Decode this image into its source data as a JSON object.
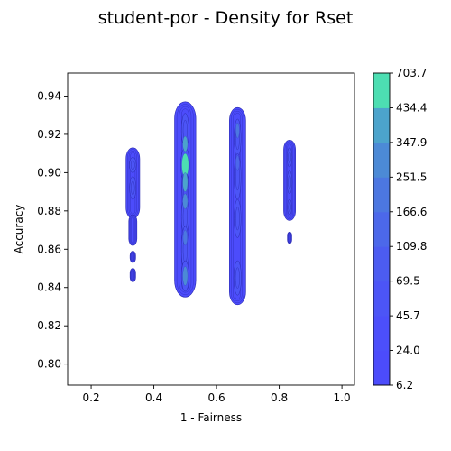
{
  "chart_data": {
    "type": "contour",
    "title": "student-por - Density for Rset",
    "xlabel": "1 - Fairness",
    "ylabel": "Accuracy",
    "xlim": [
      0.125,
      1.04
    ],
    "ylim": [
      0.789,
      0.952
    ],
    "xticks": [
      0.2,
      0.4,
      0.6,
      0.8,
      1.0
    ],
    "xtick_labels": [
      "0.2",
      "0.4",
      "0.6",
      "0.8",
      "1.0"
    ],
    "yticks": [
      0.8,
      0.82,
      0.84,
      0.86,
      0.88,
      0.9,
      0.92,
      0.94
    ],
    "ytick_labels": [
      "0.80",
      "0.82",
      "0.84",
      "0.86",
      "0.88",
      "0.90",
      "0.92",
      "0.94"
    ],
    "grid": false,
    "colorbar": {
      "levels": [
        6.2,
        24.0,
        45.7,
        69.5,
        109.8,
        166.6,
        251.5,
        347.9,
        434.4,
        703.7
      ],
      "labels": [
        "6.2",
        "24.0",
        "45.7",
        "69.5",
        "109.8",
        "166.6",
        "251.5",
        "347.9",
        "434.4",
        "703.7"
      ],
      "colors": [
        "#4c4cfb",
        "#4c4ffa",
        "#4c55f6",
        "#4c5cf1",
        "#4c68ea",
        "#4c77e1",
        "#4c8ad6",
        "#4ca4cc",
        "#4ddeb2"
      ]
    },
    "series": [
      {
        "x": 0.333,
        "blobs": [
          {
            "y_min": 0.876,
            "y_max": 0.913,
            "half_width": 0.022
          },
          {
            "y_min": 0.862,
            "y_max": 0.878,
            "half_width": 0.013
          },
          {
            "y_min": 0.853,
            "y_max": 0.859,
            "half_width": 0.009
          },
          {
            "y_min": 0.843,
            "y_max": 0.85,
            "half_width": 0.009
          }
        ],
        "core": [
          {
            "y": 0.904,
            "half_width": 0.011,
            "half_height": 0.004
          },
          {
            "y": 0.892,
            "half_width": 0.01,
            "half_height": 0.006
          }
        ]
      },
      {
        "x": 0.5,
        "blobs": [
          {
            "y_min": 0.835,
            "y_max": 0.937,
            "half_width": 0.034
          }
        ],
        "core": [
          {
            "y": 0.904,
            "half_width": 0.014,
            "half_height": 0.009
          },
          {
            "y": 0.892,
            "half_width": 0.01,
            "half_height": 0.01
          },
          {
            "y": 0.877,
            "half_width": 0.012,
            "half_height": 0.01
          },
          {
            "y": 0.86,
            "half_width": 0.012,
            "half_height": 0.012
          },
          {
            "y": 0.846,
            "half_width": 0.012,
            "half_height": 0.008
          },
          {
            "y": 0.922,
            "half_width": 0.012,
            "half_height": 0.009
          }
        ],
        "peaks": [
          {
            "y": 0.904,
            "half_width": 0.011,
            "half_height": 0.006,
            "color": "#4ddeb2"
          },
          {
            "y": 0.915,
            "half_width": 0.008,
            "half_height": 0.004,
            "color": "#4ca4cc"
          },
          {
            "y": 0.895,
            "half_width": 0.008,
            "half_height": 0.005,
            "color": "#4ca4cc"
          },
          {
            "y": 0.885,
            "half_width": 0.008,
            "half_height": 0.004,
            "color": "#4c8ad6"
          },
          {
            "y": 0.846,
            "half_width": 0.008,
            "half_height": 0.005,
            "color": "#4c8ad6"
          },
          {
            "y": 0.866,
            "half_width": 0.007,
            "half_height": 0.004,
            "color": "#4c77e1"
          }
        ]
      },
      {
        "x": 0.667,
        "blobs": [
          {
            "y_min": 0.831,
            "y_max": 0.934,
            "half_width": 0.026
          }
        ],
        "core": [
          {
            "y": 0.918,
            "half_width": 0.011,
            "half_height": 0.01
          },
          {
            "y": 0.898,
            "half_width": 0.011,
            "half_height": 0.012
          },
          {
            "y": 0.876,
            "half_width": 0.011,
            "half_height": 0.01
          },
          {
            "y": 0.845,
            "half_width": 0.012,
            "half_height": 0.009
          }
        ],
        "peaks": [
          {
            "y": 0.922,
            "half_width": 0.006,
            "half_height": 0.004,
            "color": "#4c77e1"
          },
          {
            "y": 0.905,
            "half_width": 0.006,
            "half_height": 0.004,
            "color": "#4c68ea"
          }
        ]
      },
      {
        "x": 0.833,
        "blobs": [
          {
            "y_min": 0.875,
            "y_max": 0.917,
            "half_width": 0.019
          },
          {
            "y_min": 0.863,
            "y_max": 0.869,
            "half_width": 0.007
          }
        ],
        "core": [
          {
            "y": 0.908,
            "half_width": 0.008,
            "half_height": 0.005
          },
          {
            "y": 0.895,
            "half_width": 0.008,
            "half_height": 0.006
          },
          {
            "y": 0.882,
            "half_width": 0.007,
            "half_height": 0.004
          }
        ]
      }
    ]
  }
}
